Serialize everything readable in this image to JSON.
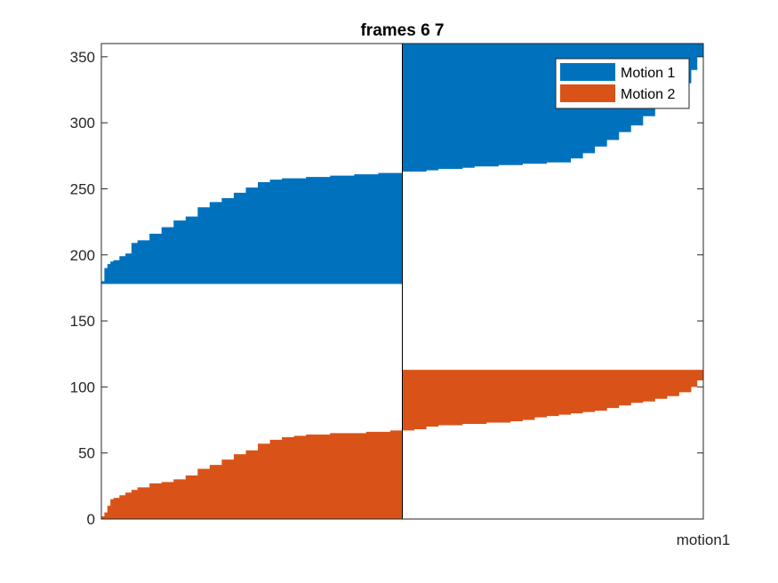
{
  "chart_data": {
    "type": "area",
    "title": "frames 6 7",
    "xlabel": "motion1",
    "ylabel": "",
    "ylim": [
      0,
      360
    ],
    "yticks": [
      0,
      50,
      100,
      150,
      200,
      250,
      300,
      350
    ],
    "grid": false,
    "legend_position": "top-right",
    "divider_x": 0.5,
    "series": [
      {
        "name": "Motion 1",
        "color": "#0072BD",
        "segments": [
          {
            "x_start": 0.0,
            "x_end": 0.5,
            "baseline": 178,
            "x": [
              0.0,
              0.005,
              0.01,
              0.015,
              0.02,
              0.03,
              0.04,
              0.05,
              0.06,
              0.08,
              0.1,
              0.12,
              0.14,
              0.16,
              0.18,
              0.2,
              0.22,
              0.24,
              0.26,
              0.28,
              0.3,
              0.32,
              0.34,
              0.36,
              0.38,
              0.4,
              0.42,
              0.44,
              0.46,
              0.48,
              0.5
            ],
            "y": [
              180,
              190,
              193,
              195,
              196,
              199,
              201,
              209,
              211,
              216,
              221,
              226,
              229,
              236,
              240,
              243,
              247,
              251,
              255,
              257,
              258,
              258,
              259,
              259,
              260,
              260,
              261,
              261,
              262,
              262,
              263
            ]
          },
          {
            "x_start": 0.5,
            "x_end": 1.0,
            "baseline": 360,
            "x": [
              0.5,
              0.52,
              0.54,
              0.56,
              0.58,
              0.6,
              0.62,
              0.64,
              0.66,
              0.68,
              0.7,
              0.72,
              0.74,
              0.76,
              0.78,
              0.8,
              0.82,
              0.84,
              0.86,
              0.88,
              0.9,
              0.92,
              0.94,
              0.96,
              0.98,
              0.99,
              1.0
            ],
            "y": [
              263,
              263,
              264,
              265,
              265,
              266,
              267,
              267,
              268,
              268,
              269,
              269,
              270,
              270,
              273,
              277,
              282,
              287,
              293,
              298,
              305,
              313,
              320,
              330,
              340,
              350,
              360
            ]
          }
        ]
      },
      {
        "name": "Motion 2",
        "color": "#D95319",
        "segments": [
          {
            "x_start": 0.0,
            "x_end": 0.5,
            "baseline": 0,
            "x": [
              0.0,
              0.005,
              0.01,
              0.015,
              0.02,
              0.03,
              0.04,
              0.05,
              0.06,
              0.08,
              0.1,
              0.12,
              0.14,
              0.16,
              0.18,
              0.2,
              0.22,
              0.24,
              0.26,
              0.28,
              0.3,
              0.32,
              0.34,
              0.36,
              0.38,
              0.4,
              0.42,
              0.44,
              0.46,
              0.48,
              0.5
            ],
            "y": [
              2,
              5,
              10,
              15,
              16,
              18,
              20,
              22,
              24,
              27,
              28,
              30,
              33,
              38,
              41,
              45,
              49,
              52,
              57,
              60,
              62,
              63,
              64,
              64,
              65,
              65,
              65,
              66,
              66,
              67,
              67
            ]
          },
          {
            "x_start": 0.5,
            "x_end": 1.0,
            "baseline": 113,
            "x": [
              0.5,
              0.52,
              0.54,
              0.56,
              0.58,
              0.6,
              0.62,
              0.64,
              0.66,
              0.68,
              0.7,
              0.72,
              0.74,
              0.76,
              0.78,
              0.8,
              0.82,
              0.84,
              0.86,
              0.88,
              0.9,
              0.92,
              0.94,
              0.96,
              0.98,
              0.99,
              1.0
            ],
            "y": [
              67,
              68,
              70,
              71,
              71,
              72,
              72,
              73,
              73,
              74,
              75,
              77,
              78,
              79,
              80,
              81,
              82,
              84,
              86,
              88,
              89,
              91,
              93,
              96,
              100,
              105,
              113
            ]
          }
        ]
      }
    ]
  }
}
